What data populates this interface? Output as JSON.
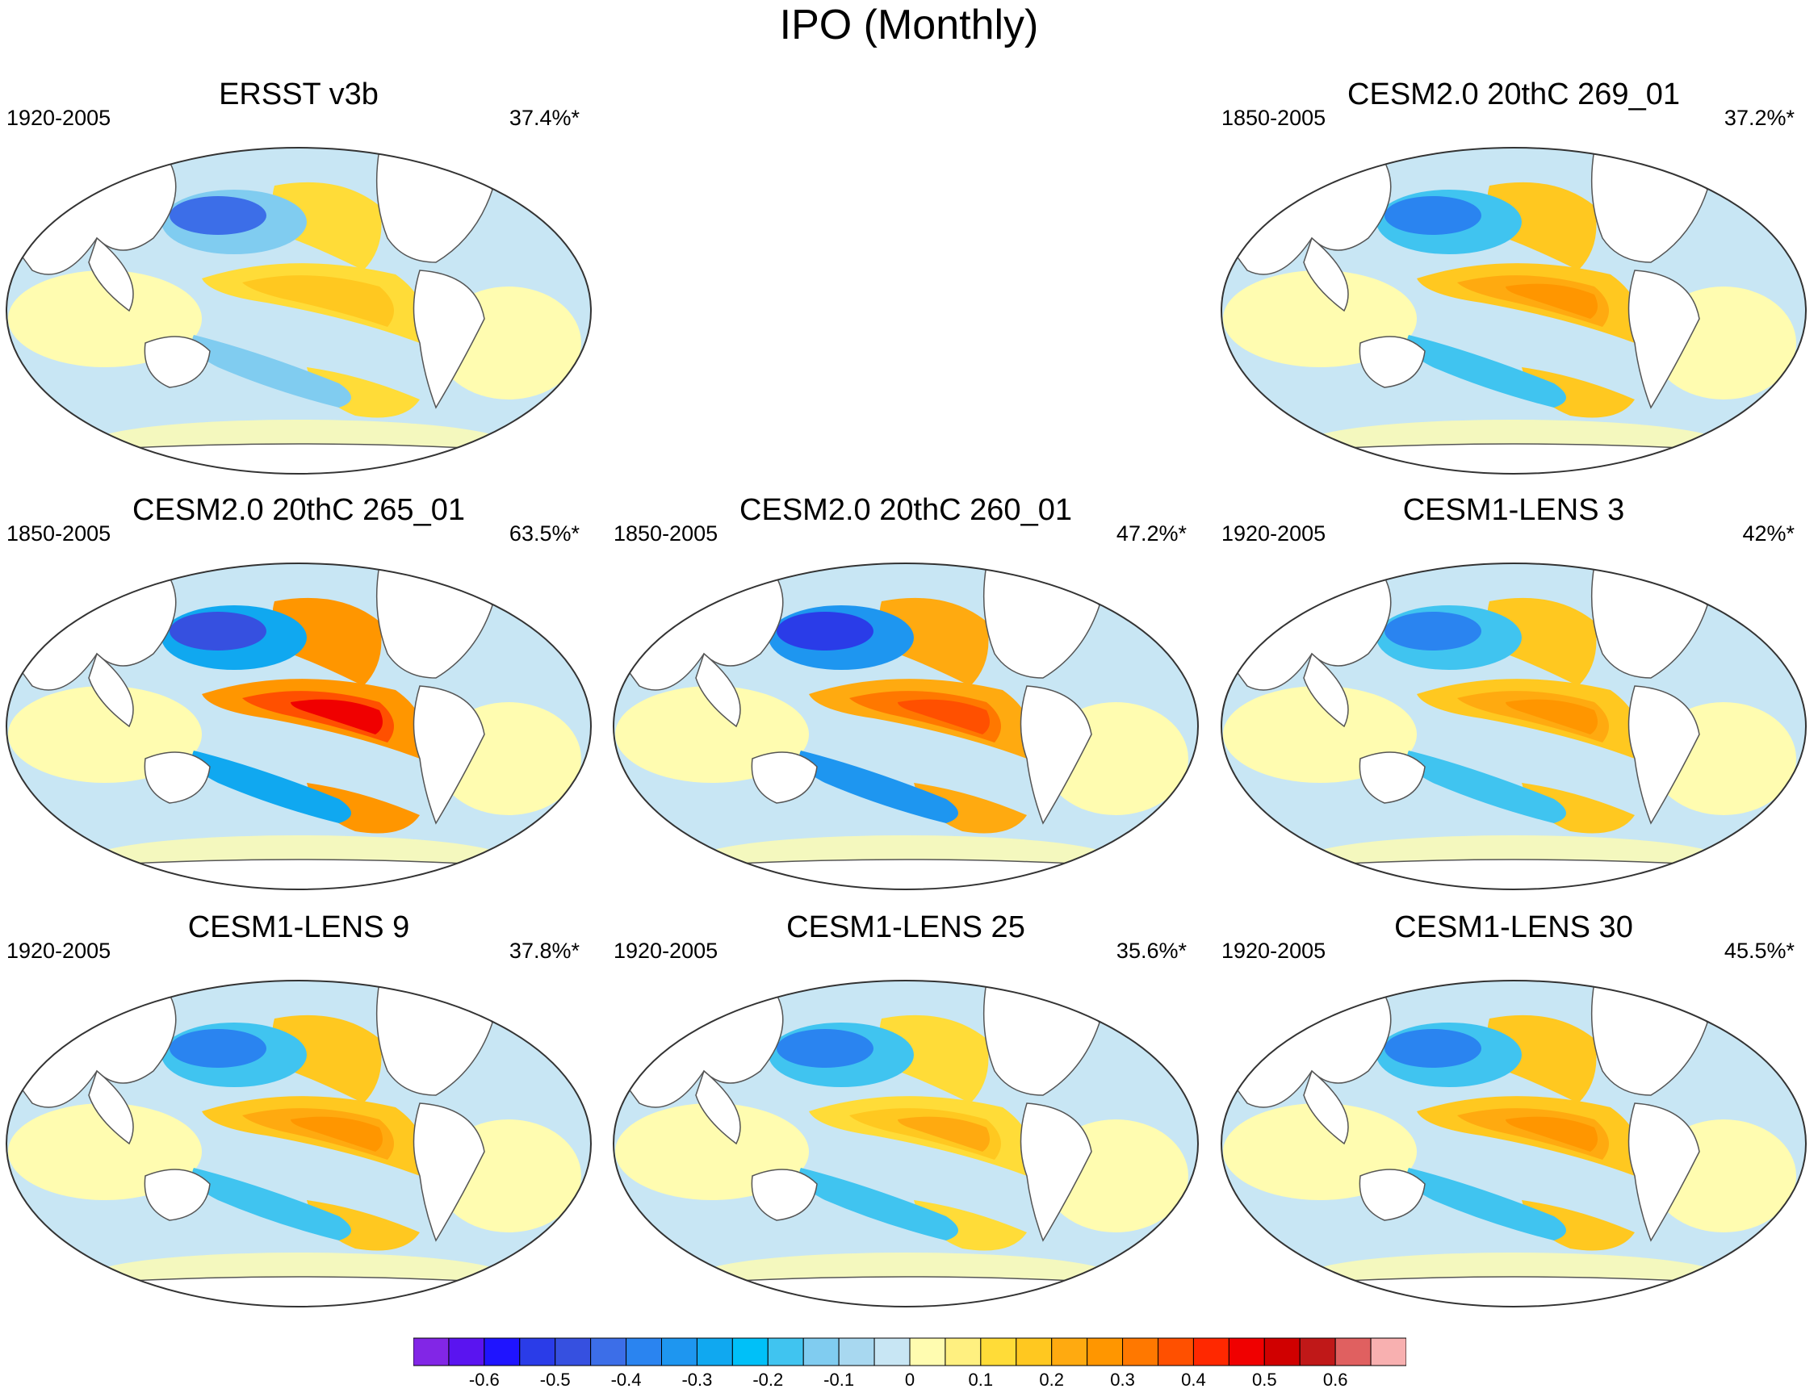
{
  "figure": {
    "title": "IPO (Monthly)"
  },
  "panels": [
    {
      "id": "p1",
      "title": "ERSST v3b",
      "years": "1920-2005",
      "percent": "37.4%*",
      "pattern": "obs"
    },
    {
      "id": "p2",
      "title": "CESM2.0 20thC 269_01",
      "years": "1850-2005",
      "percent": "37.2%*",
      "pattern": "moderate"
    },
    {
      "id": "p3",
      "title": "CESM2.0 20thC 265_01",
      "years": "1850-2005",
      "percent": "63.5%*",
      "pattern": "strong"
    },
    {
      "id": "p4",
      "title": "CESM2.0 20thC 260_01",
      "years": "1850-2005",
      "percent": "47.2%*",
      "pattern": "moderate-strong"
    },
    {
      "id": "p5",
      "title": "CESM1-LENS 3",
      "years": "1920-2005",
      "percent": "42%*",
      "pattern": "moderate"
    },
    {
      "id": "p6",
      "title": "CESM1-LENS 9",
      "years": "1920-2005",
      "percent": "37.8%*",
      "pattern": "moderate"
    },
    {
      "id": "p7",
      "title": "CESM1-LENS 25",
      "years": "1920-2005",
      "percent": "35.6%*",
      "pattern": "weak"
    },
    {
      "id": "p8",
      "title": "CESM1-LENS 30",
      "years": "1920-2005",
      "percent": "45.5%*",
      "pattern": "moderate"
    }
  ],
  "colorbar": {
    "colors": [
      "#8226e6",
      "#5a14f0",
      "#1f14ff",
      "#2a3ce8",
      "#3650e0",
      "#3c6ee8",
      "#2a84f0",
      "#1e96f0",
      "#10a8f0",
      "#00c0f8",
      "#40c4f0",
      "#80ccf0",
      "#a8d8f0",
      "#c8e6f4",
      "#fffcb0",
      "#fff080",
      "#ffdc38",
      "#ffc820",
      "#ffaa10",
      "#ff9600",
      "#ff7800",
      "#ff5000",
      "#ff2800",
      "#f00000",
      "#d00000",
      "#c01818",
      "#e06060",
      "#f8b0b0"
    ],
    "ticks": [
      "-0.6",
      "-0.5",
      "-0.4",
      "-0.3",
      "-0.2",
      "-0.1",
      "0",
      "0.1",
      "0.2",
      "0.3",
      "0.4",
      "0.5",
      "0.6"
    ],
    "tick_values": [
      -0.6,
      -0.5,
      -0.4,
      -0.3,
      -0.2,
      -0.1,
      0,
      0.1,
      0.2,
      0.3,
      0.4,
      0.5,
      0.6
    ]
  }
}
